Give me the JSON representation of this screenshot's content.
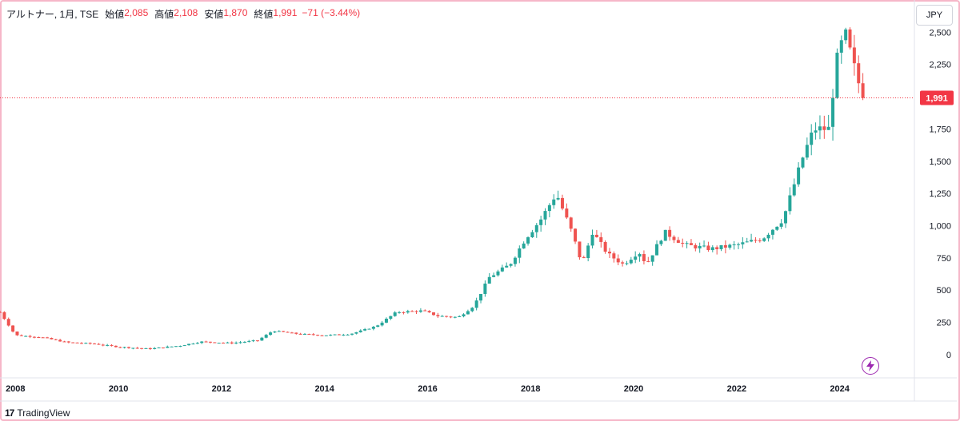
{
  "header": {
    "symbol_label": "アルトナー, 1月, TSE",
    "open_label": "始値",
    "open_value": "2,085",
    "high_label": "高値",
    "high_value": "2,108",
    "low_label": "安値",
    "low_value": "1,870",
    "close_label": "終値",
    "close_value": "1,991",
    "change_text": "−71 (−3.44%)"
  },
  "currency_button": "JPY",
  "last_price_badge": "1,991",
  "footer": {
    "brand_mark": "17",
    "brand_name": "TradingView"
  },
  "icons": {
    "lightning": "lightning-icon",
    "logo": "tradingview-logo-icon"
  },
  "colors": {
    "up": "#26a69a",
    "down": "#ef5350",
    "last": "#f23645",
    "accent": "#9c27b0"
  },
  "chart_data": {
    "type": "candlestick",
    "interval": "1M",
    "currency": "JPY",
    "y_ticks": [
      0,
      250,
      500,
      750,
      1000,
      1250,
      1500,
      1750,
      2000,
      2250,
      2500
    ],
    "y_tick_labels": [
      "0",
      "250",
      "500",
      "750",
      "1,000",
      "1,250",
      "1,500",
      "1,750",
      "",
      "2,250",
      "2,500"
    ],
    "x_tick_labels": [
      "2008",
      "2010",
      "2012",
      "2014",
      "2016",
      "2018",
      "2020",
      "2022",
      "2024"
    ],
    "x_ticks": [
      2008,
      2010,
      2012,
      2014,
      2016,
      2018,
      2020,
      2022,
      2024
    ],
    "ylim": [
      -180,
      2750
    ],
    "xlim": [
      2007.7,
      2025.45
    ],
    "last_price": 1991,
    "grid": false,
    "keypoints": [
      [
        2007.7,
        330
      ],
      [
        2008.0,
        150
      ],
      [
        2008.5,
        135
      ],
      [
        2009.0,
        95
      ],
      [
        2009.5,
        85
      ],
      [
        2010.0,
        60
      ],
      [
        2010.6,
        45
      ],
      [
        2011.2,
        70
      ],
      [
        2011.6,
        100
      ],
      [
        2012.2,
        90
      ],
      [
        2012.7,
        110
      ],
      [
        2013.0,
        185
      ],
      [
        2013.5,
        160
      ],
      [
        2014.0,
        150
      ],
      [
        2014.5,
        160
      ],
      [
        2015.0,
        220
      ],
      [
        2015.4,
        330
      ],
      [
        2015.9,
        340
      ],
      [
        2016.2,
        300
      ],
      [
        2016.6,
        290
      ],
      [
        2016.9,
        380
      ],
      [
        2017.2,
        600
      ],
      [
        2017.6,
        700
      ],
      [
        2017.9,
        900
      ],
      [
        2018.2,
        1050
      ],
      [
        2018.5,
        1250
      ],
      [
        2018.8,
        950
      ],
      [
        2019.0,
        700
      ],
      [
        2019.2,
        950
      ],
      [
        2019.5,
        780
      ],
      [
        2019.8,
        700
      ],
      [
        2020.1,
        800
      ],
      [
        2020.25,
        700
      ],
      [
        2020.6,
        950
      ],
      [
        2021.0,
        850
      ],
      [
        2021.5,
        820
      ],
      [
        2022.0,
        850
      ],
      [
        2022.5,
        900
      ],
      [
        2022.9,
        1050
      ],
      [
        2023.1,
        1300
      ],
      [
        2023.3,
        1550
      ],
      [
        2023.5,
        1750
      ],
      [
        2023.8,
        1750
      ],
      [
        2023.92,
        2250
      ],
      [
        2024.1,
        2500
      ],
      [
        2024.3,
        2200
      ],
      [
        2024.45,
        1991
      ]
    ]
  }
}
